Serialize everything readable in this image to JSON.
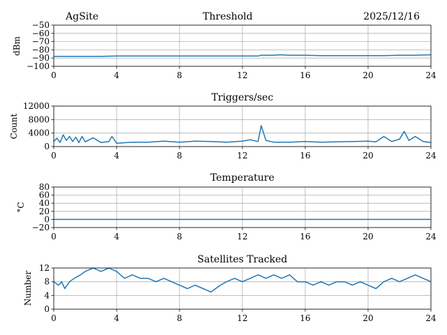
{
  "header": {
    "site": "AgSite",
    "date": "2025/12/16"
  },
  "style": {
    "series_color": "#1f77b4",
    "grid_color": "#b0b0b0"
  },
  "chart_data": [
    {
      "type": "line",
      "title": "Threshold",
      "xlabel": "",
      "ylabel": "dBm",
      "xlim": [
        0,
        24
      ],
      "ylim": [
        -100,
        -50
      ],
      "xticks": [
        "0",
        "4",
        "8",
        "12",
        "16",
        "20",
        "24"
      ],
      "yticks": [
        "−50",
        "−60",
        "−70",
        "−80",
        "−90",
        "−100"
      ],
      "grid": true,
      "series": [
        {
          "x": [
            0,
            1,
            2,
            3,
            4,
            5,
            6,
            7,
            8,
            9,
            10,
            11,
            12,
            13,
            13.2,
            14,
            14.4,
            15,
            16,
            17,
            18,
            19,
            20,
            21,
            22,
            23,
            24
          ],
          "values": [
            -88,
            -88,
            -88,
            -88,
            -87.5,
            -87.5,
            -87.5,
            -87.5,
            -87.5,
            -87.5,
            -87.5,
            -87.5,
            -87.5,
            -87.5,
            -86.5,
            -86.5,
            -86,
            -86.5,
            -86.5,
            -87,
            -87,
            -87,
            -87,
            -87,
            -86.5,
            -86.5,
            -86
          ]
        }
      ]
    },
    {
      "type": "line",
      "title": "Triggers/sec",
      "xlabel": "",
      "ylabel": "Count",
      "xlim": [
        0,
        24
      ],
      "ylim": [
        0,
        12000
      ],
      "xticks": [
        "0",
        "4",
        "8",
        "12",
        "16",
        "20",
        "24"
      ],
      "yticks": [
        "12000",
        "8000",
        "4000",
        "0"
      ],
      "grid": true,
      "series": [
        {
          "x": [
            0,
            0.2,
            0.4,
            0.6,
            0.8,
            1,
            1.2,
            1.4,
            1.6,
            1.8,
            2,
            2.5,
            3,
            3.5,
            3.7,
            4,
            5,
            6,
            7,
            8,
            9,
            10,
            11,
            12,
            12.5,
            13,
            13.2,
            13.5,
            14,
            15,
            16,
            17,
            18,
            19,
            20,
            20.5,
            21,
            21.5,
            22,
            22.3,
            22.6,
            23,
            23.5,
            24
          ],
          "values": [
            1500,
            2500,
            1200,
            3500,
            1800,
            3000,
            1500,
            2800,
            1200,
            3000,
            1400,
            2600,
            1200,
            1500,
            3000,
            1000,
            1300,
            1300,
            1600,
            1300,
            1600,
            1500,
            1300,
            1600,
            2000,
            1500,
            6200,
            1800,
            1300,
            1300,
            1500,
            1300,
            1400,
            1500,
            1600,
            1400,
            3000,
            1500,
            2200,
            4500,
            1800,
            3000,
            1500,
            1200
          ]
        }
      ]
    },
    {
      "type": "line",
      "title": "Temperature",
      "xlabel": "",
      "ylabel": "°C",
      "xlim": [
        0,
        24
      ],
      "ylim": [
        -20,
        80
      ],
      "xticks": [
        "0",
        "4",
        "8",
        "12",
        "16",
        "20",
        "24"
      ],
      "yticks": [
        "80",
        "60",
        "40",
        "20",
        "0",
        "−20"
      ],
      "grid": true,
      "series": [
        {
          "x": [
            0,
            24
          ],
          "values": [
            0,
            0
          ]
        }
      ]
    },
    {
      "type": "line",
      "title": "Satellites Tracked",
      "xlabel": "",
      "ylabel": "Number",
      "xlim": [
        0,
        24
      ],
      "ylim": [
        0,
        12
      ],
      "xticks": [
        "0",
        "4",
        "8",
        "12",
        "16",
        "20",
        "24"
      ],
      "yticks": [
        "12",
        "8",
        "4",
        "0"
      ],
      "grid": true,
      "series": [
        {
          "x": [
            0,
            0.3,
            0.5,
            0.7,
            1,
            1.3,
            1.7,
            2,
            2.5,
            3,
            3.5,
            4,
            4.5,
            5,
            5.5,
            6,
            6.5,
            7,
            7.5,
            8,
            8.5,
            9,
            9.5,
            10,
            10.3,
            10.6,
            11,
            11.5,
            12,
            12.5,
            13,
            13.5,
            14,
            14.5,
            15,
            15.5,
            16,
            16.5,
            17,
            17.5,
            18,
            18.5,
            19,
            19.5,
            20,
            20.5,
            21,
            21.5,
            22,
            22.5,
            23,
            23.5,
            24
          ],
          "values": [
            8,
            7,
            8,
            6,
            8,
            9,
            10,
            11,
            12,
            11,
            12,
            11,
            9,
            10,
            9,
            9,
            8,
            9,
            8,
            7,
            6,
            7,
            6,
            5,
            6,
            7,
            8,
            9,
            8,
            9,
            10,
            9,
            10,
            9,
            10,
            8,
            8,
            7,
            8,
            7,
            8,
            8,
            7,
            8,
            7,
            6,
            8,
            9,
            8,
            9,
            10,
            9,
            8
          ]
        }
      ]
    }
  ]
}
